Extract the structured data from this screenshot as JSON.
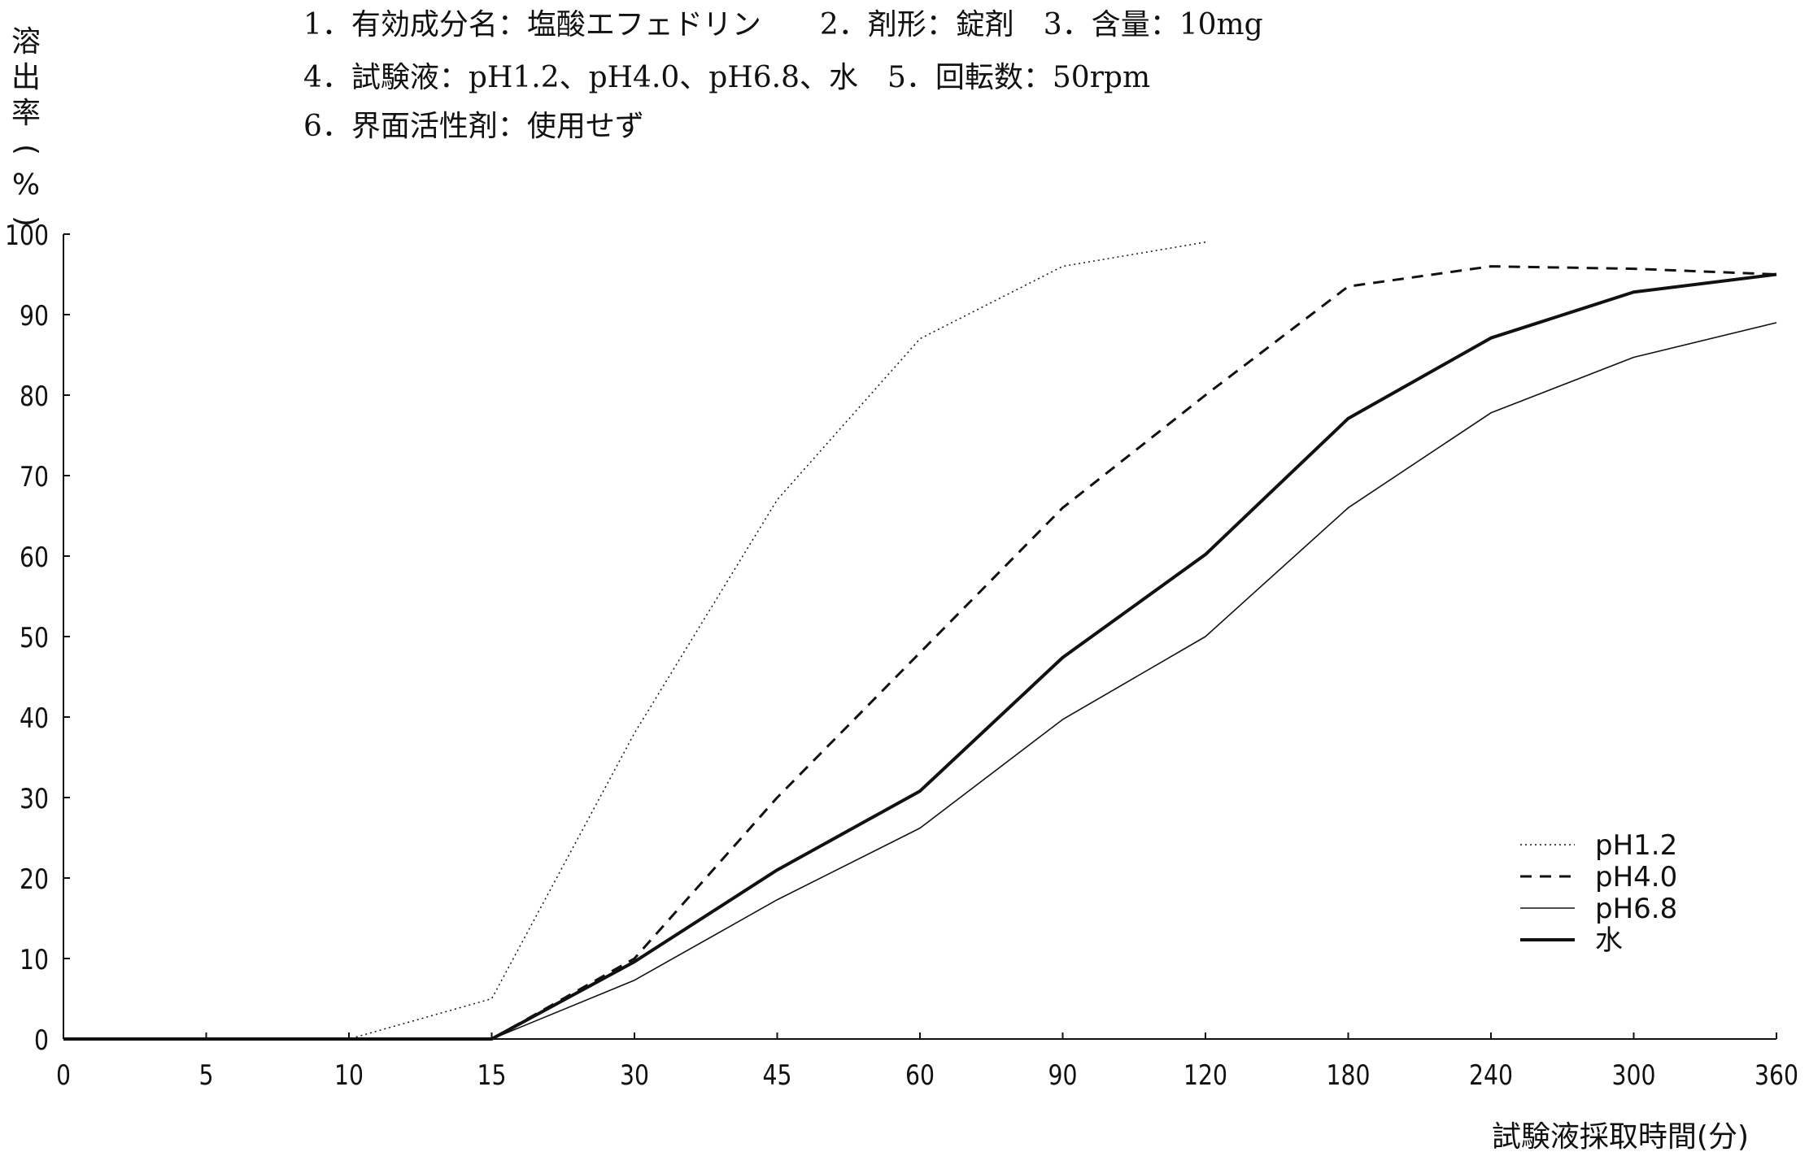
{
  "header": {
    "line1": "1．有効成分名：塩酸エフェドリン　　2．剤形：錠剤　3．含量：10mg",
    "line2": "4．試験液：pH1.2、pH4.0、pH6.8、水　5．回転数：50rpm",
    "line3": "6．界面活性剤：使用せず"
  },
  "chart_data": {
    "type": "line",
    "title": "",
    "xlabel": "試験液採取時間(分)",
    "ylabel": "溶出率(%)",
    "ylabel_chars": [
      "溶",
      "出",
      "率",
      "(",
      "%",
      ")"
    ],
    "categories": [
      "0",
      "5",
      "10",
      "15",
      "30",
      "45",
      "60",
      "90",
      "120",
      "180",
      "240",
      "300",
      "360"
    ],
    "ylim": [
      0,
      100
    ],
    "yticks": [
      "0",
      "10",
      "20",
      "30",
      "40",
      "50",
      "60",
      "70",
      "80",
      "90",
      "100"
    ],
    "grid": false,
    "legend_position": "bottom-right",
    "series": [
      {
        "name": "pH1.2",
        "style": "dotted",
        "values": [
          0,
          0,
          0,
          5,
          38,
          67,
          87,
          96,
          99,
          null,
          null,
          null,
          null
        ]
      },
      {
        "name": "pH4.0",
        "style": "dashed",
        "values": [
          0,
          0,
          0,
          0,
          10,
          30,
          48,
          66,
          80,
          93.5,
          96,
          95.7,
          95
        ]
      },
      {
        "name": "pH6.8",
        "style": "thin",
        "values": [
          0,
          0,
          0,
          0,
          7.3,
          17.3,
          26.2,
          39.7,
          50,
          66,
          77.8,
          84.7,
          89
        ]
      },
      {
        "name": "水",
        "style": "thick",
        "values": [
          0,
          0,
          0,
          0,
          9.6,
          21,
          30.8,
          47.4,
          60.2,
          77.1,
          87.1,
          92.8,
          95
        ]
      }
    ]
  }
}
